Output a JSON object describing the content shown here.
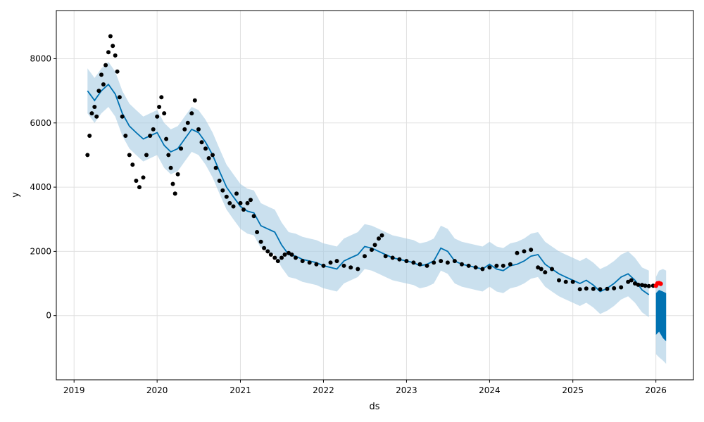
{
  "chart_data": {
    "type": "line",
    "title": "",
    "xlabel": "ds",
    "ylabel": "y",
    "xlim": [
      "2018-10-15",
      "2026-06-15"
    ],
    "ylim": [
      -2000,
      9500
    ],
    "grid": true,
    "x_ticks": [
      "2019",
      "2020",
      "2021",
      "2022",
      "2023",
      "2024",
      "2025",
      "2026"
    ],
    "y_ticks": [
      0,
      2000,
      4000,
      6000,
      8000
    ],
    "colors": {
      "observed": "#000000",
      "forecast": "#0072B2",
      "uncertainty": "#a6cce3",
      "recent": "#ff0000"
    },
    "series": [
      {
        "role": "observed",
        "x": [
          "2019-03-01",
          "2019-03-10",
          "2019-03-20",
          "2019-04-01",
          "2019-04-10",
          "2019-04-20",
          "2019-05-01",
          "2019-05-10",
          "2019-05-20",
          "2019-06-01",
          "2019-06-10",
          "2019-06-20",
          "2019-07-01",
          "2019-07-10",
          "2019-07-20",
          "2019-08-01",
          "2019-08-15",
          "2019-09-01",
          "2019-09-15",
          "2019-10-01",
          "2019-10-15",
          "2019-11-01",
          "2019-11-15",
          "2019-12-01",
          "2019-12-15",
          "2020-01-01",
          "2020-01-10",
          "2020-01-20",
          "2020-02-01",
          "2020-02-10",
          "2020-02-20",
          "2020-03-01",
          "2020-03-10",
          "2020-03-20",
          "2020-04-01",
          "2020-04-15",
          "2020-05-01",
          "2020-05-15",
          "2020-06-01",
          "2020-06-15",
          "2020-07-01",
          "2020-07-15",
          "2020-08-01",
          "2020-08-15",
          "2020-09-01",
          "2020-09-15",
          "2020-10-01",
          "2020-10-15",
          "2020-11-01",
          "2020-11-15",
          "2020-12-01",
          "2020-12-15",
          "2021-01-01",
          "2021-01-15",
          "2021-02-01",
          "2021-02-15",
          "2021-03-01",
          "2021-03-15",
          "2021-04-01",
          "2021-04-15",
          "2021-05-01",
          "2021-05-15",
          "2021-06-01",
          "2021-06-15",
          "2021-07-01",
          "2021-07-15",
          "2021-08-01",
          "2021-08-15",
          "2021-09-01",
          "2021-10-01",
          "2021-11-01",
          "2021-12-01",
          "2022-01-01",
          "2022-02-01",
          "2022-03-01",
          "2022-04-01",
          "2022-05-01",
          "2022-06-01",
          "2022-07-01",
          "2022-08-01",
          "2022-08-15",
          "2022-09-01",
          "2022-09-15",
          "2022-10-01",
          "2022-11-01",
          "2022-12-01",
          "2023-01-01",
          "2023-02-01",
          "2023-03-01",
          "2023-04-01",
          "2023-05-01",
          "2023-06-01",
          "2023-07-01",
          "2023-08-01",
          "2023-09-01",
          "2023-10-01",
          "2023-11-01",
          "2023-12-01",
          "2024-01-01",
          "2024-02-01",
          "2024-03-01",
          "2024-04-01",
          "2024-05-01",
          "2024-06-01",
          "2024-07-01",
          "2024-08-01",
          "2024-08-15",
          "2024-09-01",
          "2024-10-01",
          "2024-11-01",
          "2024-12-01",
          "2025-01-01",
          "2025-02-01",
          "2025-03-01",
          "2025-04-01",
          "2025-05-01",
          "2025-06-01",
          "2025-07-01",
          "2025-08-01",
          "2025-09-01",
          "2025-09-15",
          "2025-10-01",
          "2025-10-15",
          "2025-11-01",
          "2025-11-15",
          "2025-12-01",
          "2025-12-20"
        ],
        "y": [
          5000,
          5600,
          6300,
          6500,
          6200,
          7000,
          7500,
          7200,
          7800,
          8200,
          8700,
          8400,
          8100,
          7600,
          6800,
          6200,
          5600,
          5000,
          4700,
          4200,
          4000,
          4300,
          5000,
          5600,
          5800,
          6200,
          6500,
          6800,
          6300,
          5500,
          5000,
          4600,
          4100,
          3800,
          4400,
          5200,
          5800,
          6000,
          6300,
          6700,
          5800,
          5400,
          5200,
          4900,
          5000,
          4600,
          4200,
          3900,
          3700,
          3500,
          3400,
          3800,
          3500,
          3300,
          3500,
          3600,
          3100,
          2600,
          2300,
          2100,
          2000,
          1900,
          1800,
          1700,
          1800,
          1900,
          1950,
          1900,
          1800,
          1700,
          1650,
          1600,
          1550,
          1650,
          1700,
          1550,
          1500,
          1450,
          1850,
          2050,
          2200,
          2400,
          2500,
          1850,
          1800,
          1750,
          1700,
          1650,
          1600,
          1550,
          1650,
          1700,
          1650,
          1700,
          1600,
          1550,
          1500,
          1450,
          1500,
          1550,
          1550,
          1600,
          1950,
          2000,
          2050,
          1500,
          1450,
          1350,
          1450,
          1100,
          1050,
          1050,
          820,
          840,
          830,
          820,
          830,
          850,
          880,
          1050,
          1100,
          1000,
          960,
          950,
          930,
          920,
          930
        ]
      },
      {
        "role": "recent",
        "x": [
          "2026-01-01",
          "2026-01-08",
          "2026-01-15",
          "2026-01-22"
        ],
        "y": [
          930,
          1000,
          1010,
          990
        ]
      },
      {
        "role": "forecast",
        "x": [
          "2019-03-01",
          "2019-04-01",
          "2019-05-01",
          "2019-06-01",
          "2019-07-01",
          "2019-08-01",
          "2019-09-01",
          "2019-10-01",
          "2019-11-01",
          "2019-12-01",
          "2020-01-01",
          "2020-02-01",
          "2020-03-01",
          "2020-04-01",
          "2020-05-01",
          "2020-06-01",
          "2020-07-01",
          "2020-08-01",
          "2020-09-01",
          "2020-10-01",
          "2020-11-01",
          "2020-12-01",
          "2021-01-01",
          "2021-02-01",
          "2021-03-01",
          "2021-04-01",
          "2021-05-01",
          "2021-06-01",
          "2021-07-01",
          "2021-08-01",
          "2021-09-01",
          "2021-10-01",
          "2021-11-01",
          "2021-12-01",
          "2022-01-01",
          "2022-02-01",
          "2022-03-01",
          "2022-04-01",
          "2022-05-01",
          "2022-06-01",
          "2022-07-01",
          "2022-08-01",
          "2022-09-01",
          "2022-10-01",
          "2022-11-01",
          "2022-12-01",
          "2023-01-01",
          "2023-02-01",
          "2023-03-01",
          "2023-04-01",
          "2023-05-01",
          "2023-06-01",
          "2023-07-01",
          "2023-08-01",
          "2023-09-01",
          "2023-10-01",
          "2023-11-01",
          "2023-12-01",
          "2024-01-01",
          "2024-02-01",
          "2024-03-01",
          "2024-04-01",
          "2024-05-01",
          "2024-06-01",
          "2024-07-01",
          "2024-08-01",
          "2024-09-01",
          "2024-10-01",
          "2024-11-01",
          "2024-12-01",
          "2025-01-01",
          "2025-02-01",
          "2025-03-01",
          "2025-04-01",
          "2025-05-01",
          "2025-06-01",
          "2025-07-01",
          "2025-08-01",
          "2025-09-01",
          "2025-10-01",
          "2025-11-01",
          "2025-12-01"
        ],
        "y": [
          7000,
          6700,
          7000,
          7200,
          6900,
          6300,
          5900,
          5700,
          5500,
          5600,
          5700,
          5300,
          5100,
          5200,
          5500,
          5800,
          5700,
          5400,
          5000,
          4500,
          4000,
          3700,
          3400,
          3250,
          3200,
          2800,
          2700,
          2600,
          2200,
          1900,
          1850,
          1750,
          1700,
          1650,
          1550,
          1500,
          1450,
          1700,
          1800,
          1900,
          2150,
          2100,
          2000,
          1900,
          1800,
          1750,
          1700,
          1650,
          1550,
          1600,
          1700,
          2100,
          2000,
          1700,
          1600,
          1550,
          1500,
          1450,
          1600,
          1450,
          1400,
          1550,
          1600,
          1700,
          1850,
          1900,
          1600,
          1450,
          1300,
          1200,
          1100,
          1000,
          1100,
          950,
          750,
          850,
          1000,
          1200,
          1300,
          1100,
          800,
          650
        ]
      },
      {
        "role": "uncertainty",
        "x": [
          "2019-03-01",
          "2019-04-01",
          "2019-05-01",
          "2019-06-01",
          "2019-07-01",
          "2019-08-01",
          "2019-09-01",
          "2019-10-01",
          "2019-11-01",
          "2019-12-01",
          "2020-01-01",
          "2020-02-01",
          "2020-03-01",
          "2020-04-01",
          "2020-05-01",
          "2020-06-01",
          "2020-07-01",
          "2020-08-01",
          "2020-09-01",
          "2020-10-01",
          "2020-11-01",
          "2020-12-01",
          "2021-01-01",
          "2021-02-01",
          "2021-03-01",
          "2021-04-01",
          "2021-05-01",
          "2021-06-01",
          "2021-07-01",
          "2021-08-01",
          "2021-09-01",
          "2021-10-01",
          "2021-11-01",
          "2021-12-01",
          "2022-01-01",
          "2022-02-01",
          "2022-03-01",
          "2022-04-01",
          "2022-05-01",
          "2022-06-01",
          "2022-07-01",
          "2022-08-01",
          "2022-09-01",
          "2022-10-01",
          "2022-11-01",
          "2022-12-01",
          "2023-01-01",
          "2023-02-01",
          "2023-03-01",
          "2023-04-01",
          "2023-05-01",
          "2023-06-01",
          "2023-07-01",
          "2023-08-01",
          "2023-09-01",
          "2023-10-01",
          "2023-11-01",
          "2023-12-01",
          "2024-01-01",
          "2024-02-01",
          "2024-03-01",
          "2024-04-01",
          "2024-05-01",
          "2024-06-01",
          "2024-07-01",
          "2024-08-01",
          "2024-09-01",
          "2024-10-01",
          "2024-11-01",
          "2024-12-01",
          "2025-01-01",
          "2025-02-01",
          "2025-03-01",
          "2025-04-01",
          "2025-05-01",
          "2025-06-01",
          "2025-07-01",
          "2025-08-01",
          "2025-09-01",
          "2025-10-01",
          "2025-11-01",
          "2025-12-01"
        ],
        "upper": [
          7700,
          7400,
          7700,
          7900,
          7600,
          7000,
          6600,
          6400,
          6200,
          6300,
          6400,
          6000,
          5800,
          5900,
          6200,
          6500,
          6400,
          6100,
          5700,
          5200,
          4700,
          4400,
          4100,
          3950,
          3900,
          3500,
          3400,
          3300,
          2900,
          2600,
          2550,
          2450,
          2400,
          2350,
          2250,
          2200,
          2150,
          2400,
          2500,
          2600,
          2850,
          2800,
          2700,
          2600,
          2500,
          2450,
          2400,
          2350,
          2250,
          2300,
          2400,
          2800,
          2700,
          2400,
          2300,
          2250,
          2200,
          2150,
          2300,
          2150,
          2100,
          2250,
          2300,
          2400,
          2550,
          2600,
          2300,
          2150,
          2000,
          1900,
          1800,
          1700,
          1800,
          1650,
          1450,
          1550,
          1700,
          1900,
          2000,
          1800,
          1500,
          1400
        ],
        "lower": [
          6300,
          6000,
          6300,
          6500,
          6200,
          5600,
          5200,
          5000,
          4800,
          4900,
          5000,
          4600,
          4400,
          4500,
          4800,
          5100,
          5000,
          4700,
          4300,
          3800,
          3300,
          3000,
          2700,
          2550,
          2500,
          2100,
          2000,
          1900,
          1500,
          1200,
          1150,
          1050,
          1000,
          950,
          850,
          800,
          750,
          1000,
          1100,
          1200,
          1450,
          1400,
          1300,
          1200,
          1100,
          1050,
          1000,
          950,
          850,
          900,
          1000,
          1400,
          1300,
          1000,
          900,
          850,
          800,
          750,
          900,
          750,
          700,
          850,
          900,
          1000,
          1150,
          1200,
          900,
          750,
          600,
          500,
          400,
          300,
          400,
          250,
          50,
          150,
          300,
          500,
          600,
          400,
          100,
          -50
        ]
      },
      {
        "role": "forecast_tail",
        "x": [
          "2026-01-01",
          "2026-01-15",
          "2026-02-01",
          "2026-02-15"
        ],
        "y_high": [
          700,
          800,
          750,
          700
        ],
        "y_low": [
          -600,
          -500,
          -700,
          -800
        ],
        "band_upper": [
          1200,
          1400,
          1450,
          1400
        ],
        "band_lower": [
          -1200,
          -1300,
          -1400,
          -1500
        ]
      }
    ]
  }
}
